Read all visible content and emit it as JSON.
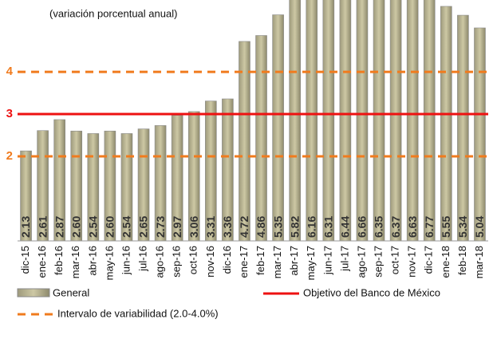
{
  "chart_data": {
    "type": "bar",
    "subtitle": "(variación porcentual anual)",
    "categories": [
      "dic-15",
      "ene-16",
      "feb-16",
      "mar-16",
      "abr-16",
      "may-16",
      "jun-16",
      "jul-16",
      "ago-16",
      "sep-16",
      "oct-16",
      "nov-16",
      "dic-16",
      "ene-17",
      "feb-17",
      "mar-17",
      "abr-17",
      "may-17",
      "jun-17",
      "jul-17",
      "ago-17",
      "sep-17",
      "oct-17",
      "nov-17",
      "dic-17",
      "ene-18",
      "feb-18",
      "mar-18"
    ],
    "series": [
      {
        "name": "General",
        "color": "#cdc8a4",
        "values": [
          2.13,
          2.61,
          2.87,
          2.6,
          2.54,
          2.6,
          2.54,
          2.65,
          2.73,
          2.97,
          3.06,
          3.31,
          3.36,
          4.72,
          4.86,
          5.35,
          5.82,
          6.16,
          6.31,
          6.44,
          6.66,
          6.35,
          6.37,
          6.63,
          6.77,
          5.55,
          5.34,
          5.04
        ],
        "value_labels": [
          "2.13",
          "2.61",
          "2.87",
          "2.60",
          "2.54",
          "2.60",
          "2.54",
          "2.65",
          "2.73",
          "2.97",
          "3.06",
          "3.31",
          "3.36",
          "4.72",
          "4.86",
          "5.35",
          "5.82",
          "6.16",
          "6.31",
          "6.44",
          "6.66",
          "6.35",
          "6.37",
          "6.63",
          "6.77",
          "5.55",
          "5.34",
          "5.04"
        ]
      }
    ],
    "reference_lines": [
      {
        "name": "Objetivo del Banco de México",
        "values": [
          3
        ],
        "color": "#ee1111",
        "style": "solid"
      },
      {
        "name": "Intervalo de variabilidad (2.0-4.0%)",
        "values": [
          2,
          4
        ],
        "color": "#f07b1e",
        "style": "dashed"
      }
    ],
    "ylim": [
      0,
      5.7
    ],
    "yticks": [
      2,
      3,
      4
    ]
  }
}
